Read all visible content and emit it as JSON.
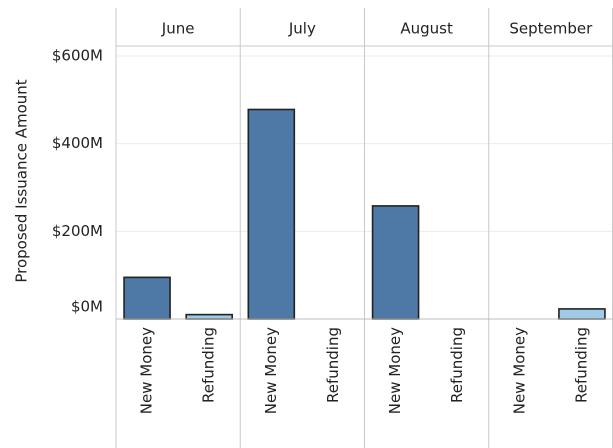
{
  "chart_data": {
    "type": "bar",
    "ylabel": "Proposed Issuance Amount",
    "ylim": [
      0,
      650
    ],
    "yticks": [
      {
        "value": 0,
        "label": "$0M"
      },
      {
        "value": 200,
        "label": "$200M"
      },
      {
        "value": 400,
        "label": "$400M"
      },
      {
        "value": 600,
        "label": "$600M"
      }
    ],
    "grid": true,
    "facets": [
      "June",
      "July",
      "August",
      "September"
    ],
    "categories": [
      "New Money",
      "Refunding"
    ],
    "series_colors": {
      "New Money": "#4e79a7",
      "Refunding": "#a0cbe8"
    },
    "values": [
      [
        95,
        10
      ],
      [
        478,
        0
      ],
      [
        258,
        0
      ],
      [
        0,
        23
      ]
    ]
  }
}
